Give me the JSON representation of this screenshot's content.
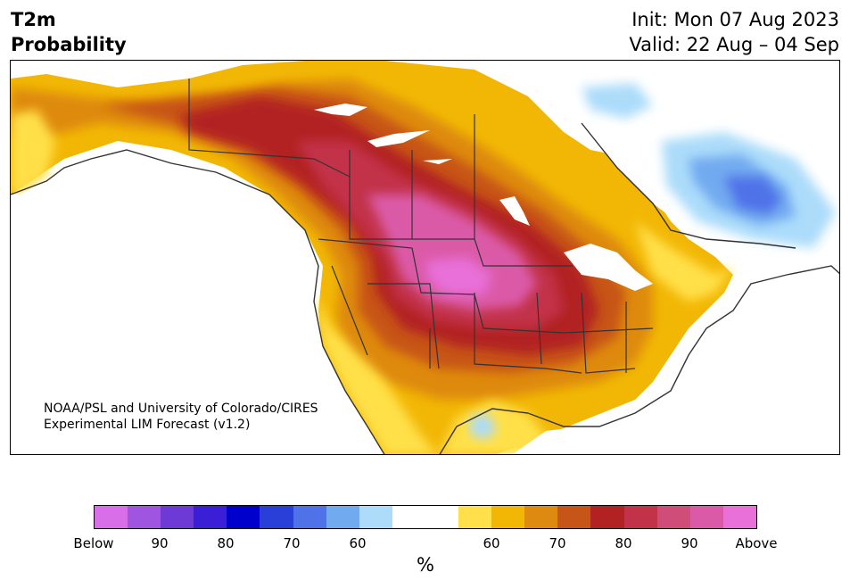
{
  "title": {
    "line1": "T2m",
    "line2": "Probability"
  },
  "dates": {
    "init": "Init: Mon 07 Aug 2023",
    "valid": "Valid: 22 Aug – 04 Sep"
  },
  "credit": {
    "line1": "NOAA/PSL and University of Colorado/CIRES",
    "line2": "Experimental LIM Forecast (v1.2)"
  },
  "colorbar": {
    "colors": [
      "#d96fe8",
      "#9f55e0",
      "#6d3ad6",
      "#3a1fd6",
      "#0000cc",
      "#2a3fd8",
      "#4f72e8",
      "#72aaf0",
      "#acdcfa",
      "#ffffff",
      "#ffffff",
      "#ffe04a",
      "#f2b705",
      "#de8a10",
      "#c75518",
      "#b22222",
      "#c2334a",
      "#d04d7a",
      "#db5aa8",
      "#e870d8"
    ],
    "labels": [
      "Below",
      "90",
      "80",
      "70",
      "60",
      "60",
      "70",
      "80",
      "90",
      "Above"
    ],
    "unit": "%"
  },
  "map": {
    "variable": "2-m temperature probability",
    "region": "North America",
    "above_normal_max_area": "Central Plains",
    "below_normal_area": "Eastern Canada / Quebec"
  }
}
